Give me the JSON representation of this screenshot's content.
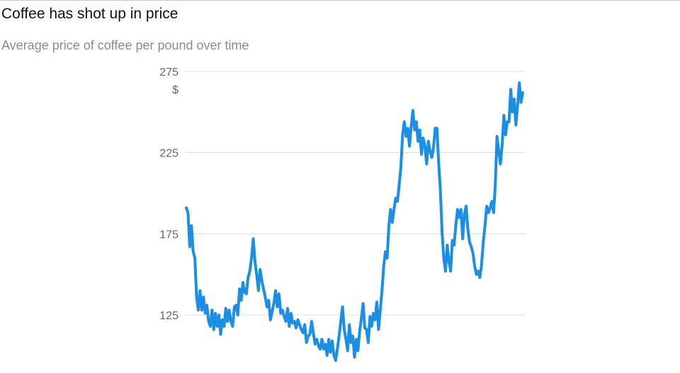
{
  "header": {
    "title": "Coffee has shot up in price",
    "subtitle": "Average price of coffee per pound over time"
  },
  "colors": {
    "line": "#1a8fe3",
    "grid": "#dcdcdc",
    "tick_text": "#666666"
  },
  "chart_data": {
    "type": "line",
    "title": "Coffee has shot up in price",
    "subtitle": "Average price of coffee per pound over time",
    "xlabel": "",
    "ylabel": "$",
    "y_unit_label": "$",
    "ylim": [
      107,
      275
    ],
    "yticks": [
      125,
      175,
      225,
      275
    ],
    "ytick_labels": [
      "125",
      "175",
      "225",
      "275"
    ],
    "grid": true,
    "legend": "none",
    "series": [
      {
        "values": [
          191,
          188,
          167,
          180,
          164,
          160,
          136,
          128,
          140,
          128,
          136,
          126,
          131,
          121,
          118,
          128,
          116,
          126,
          118,
          125,
          113,
          122,
          118,
          129,
          121,
          128,
          121,
          118,
          130,
          131,
          125,
          141,
          134,
          145,
          139,
          138,
          148,
          152,
          160,
          172,
          158,
          150,
          140,
          153,
          146,
          141,
          136,
          130,
          134,
          122,
          127,
          132,
          140,
          130,
          138,
          126,
          128,
          124,
          121,
          129,
          118,
          126,
          120,
          121,
          117,
          122,
          119,
          116,
          114,
          119,
          108,
          112,
          113,
          121,
          114,
          107,
          110,
          106,
          104,
          110,
          104,
          107,
          100,
          110,
          102,
          109,
          100,
          97,
          104,
          112,
          121,
          130,
          116,
          110,
          103,
          119,
          108,
          112,
          99,
          110,
          103,
          115,
          123,
          132,
          117,
          116,
          108,
          124,
          118,
          126,
          122,
          133,
          116,
          128,
          140,
          155,
          164,
          160,
          180,
          190,
          182,
          190,
          197,
          195,
          205,
          216,
          236,
          244,
          235,
          240,
          229,
          241,
          251,
          239,
          244,
          232,
          239,
          224,
          234,
          229,
          218,
          232,
          226,
          222,
          228,
          240,
          240,
          219,
          202,
          176,
          160,
          152,
          168,
          158,
          152,
          171,
          168,
          180,
          190,
          185,
          190,
          172,
          187,
          192,
          178,
          170,
          167,
          163,
          155,
          150,
          152,
          148,
          156,
          170,
          180,
          192,
          188,
          191,
          195,
          188,
          205,
          235,
          226,
          218,
          230,
          248,
          236,
          244,
          244,
          264,
          250,
          258,
          242,
          254,
          268,
          256,
          262
        ]
      }
    ]
  }
}
